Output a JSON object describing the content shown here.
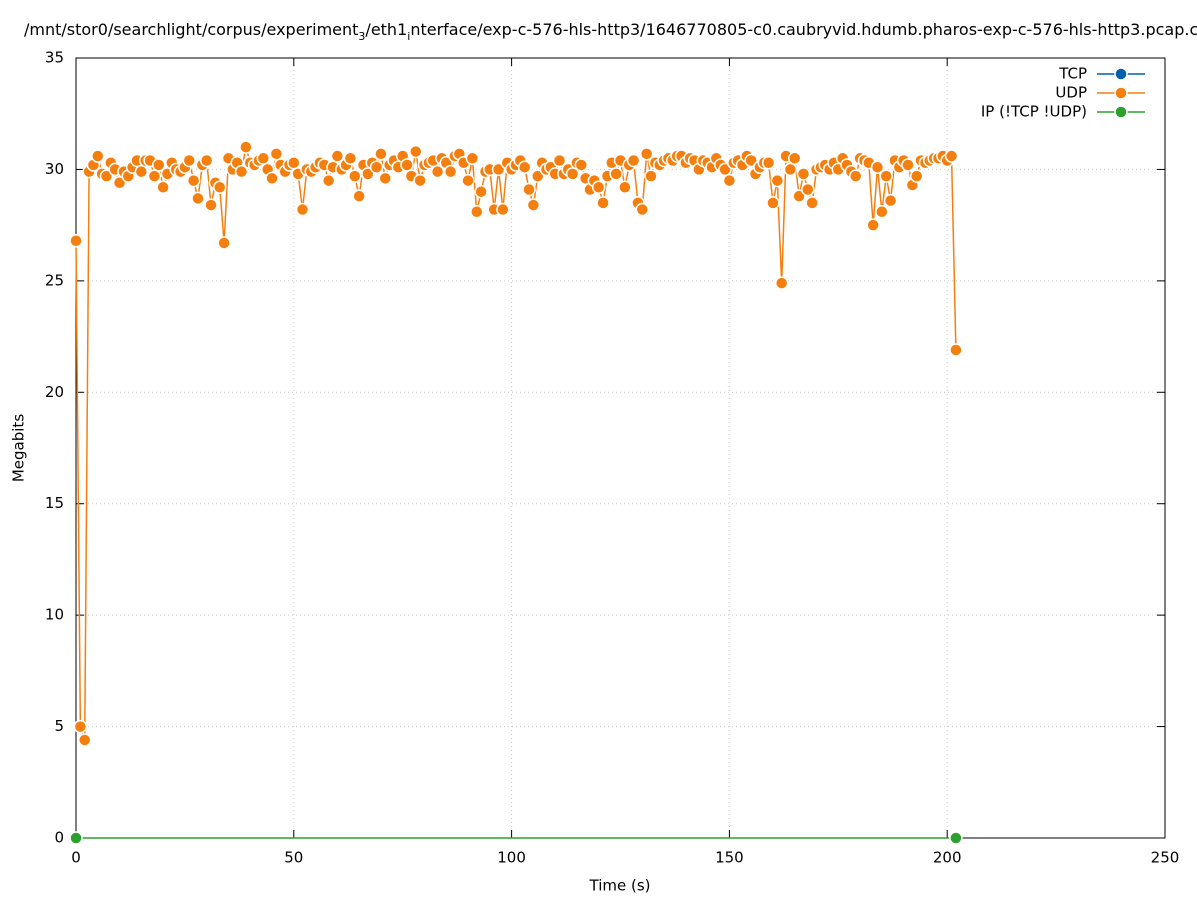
{
  "chart_data": {
    "type": "line",
    "title": [
      "/mnt/stor0/searchlight/corpus/experiment",
      "3",
      "/eth1",
      "i",
      "nterface/exp-c-576-hls-http3/1646770805-c0.caubryvid.hdumb.pharos-exp-c-576-hls-http3.pcap.c"
    ],
    "xlabel": "Time (s)",
    "ylabel": "Megabits",
    "xlim": [
      0,
      250
    ],
    "xticks": [
      0,
      50,
      100,
      150,
      200,
      250
    ],
    "ylim": [
      0,
      35
    ],
    "yticks": [
      0,
      5,
      10,
      15,
      20,
      25,
      30,
      35
    ],
    "grid": true,
    "legend": "top-right",
    "series": [
      {
        "name": "TCP",
        "color": "#0060ad",
        "x": [],
        "values": []
      },
      {
        "name": "UDP",
        "color": "#f57f0e",
        "x": [
          0,
          1,
          2,
          3,
          4,
          5,
          6,
          7,
          8,
          9,
          10,
          11,
          12,
          13,
          14,
          15,
          16,
          17,
          18,
          19,
          20,
          21,
          22,
          23,
          24,
          25,
          26,
          27,
          28,
          29,
          30,
          31,
          32,
          33,
          34,
          35,
          36,
          37,
          38,
          39,
          40,
          41,
          42,
          43,
          44,
          45,
          46,
          47,
          48,
          49,
          50,
          51,
          52,
          53,
          54,
          55,
          56,
          57,
          58,
          59,
          60,
          61,
          62,
          63,
          64,
          65,
          66,
          67,
          68,
          69,
          70,
          71,
          72,
          73,
          74,
          75,
          76,
          77,
          78,
          79,
          80,
          81,
          82,
          83,
          84,
          85,
          86,
          87,
          88,
          89,
          90,
          91,
          92,
          93,
          94,
          95,
          96,
          97,
          98,
          99,
          100,
          101,
          102,
          103,
          104,
          105,
          106,
          107,
          108,
          109,
          110,
          111,
          112,
          113,
          114,
          115,
          116,
          117,
          118,
          119,
          120,
          121,
          122,
          123,
          124,
          125,
          126,
          127,
          128,
          129,
          130,
          131,
          132,
          133,
          134,
          135,
          136,
          137,
          138,
          139,
          140,
          141,
          142,
          143,
          144,
          145,
          146,
          147,
          148,
          149,
          150,
          151,
          152,
          153,
          154,
          155,
          156,
          157,
          158,
          159,
          160,
          161,
          162,
          163,
          164,
          165,
          166,
          167,
          168,
          169,
          170,
          171,
          172,
          173,
          174,
          175,
          176,
          177,
          178,
          179,
          180,
          181,
          182,
          183,
          184,
          185,
          186,
          187,
          188,
          189,
          190,
          191,
          192,
          193,
          194,
          195,
          196,
          197,
          198,
          199,
          200,
          201,
          202
        ],
        "values": [
          26.8,
          5.0,
          4.4,
          29.9,
          30.2,
          30.6,
          29.8,
          29.7,
          30.3,
          30.0,
          29.4,
          29.9,
          29.7,
          30.1,
          30.4,
          29.9,
          30.4,
          30.4,
          29.7,
          30.2,
          29.2,
          29.8,
          30.3,
          30.0,
          29.9,
          30.1,
          30.4,
          29.5,
          28.7,
          30.2,
          30.4,
          28.4,
          29.4,
          29.2,
          26.7,
          30.5,
          30.0,
          30.3,
          29.9,
          31.0,
          30.3,
          30.2,
          30.4,
          30.5,
          30.0,
          29.6,
          30.7,
          30.2,
          29.9,
          30.2,
          30.3,
          29.8,
          28.2,
          30.0,
          29.9,
          30.1,
          30.3,
          30.2,
          29.5,
          30.1,
          30.6,
          30.0,
          30.2,
          30.5,
          29.7,
          28.8,
          30.2,
          29.8,
          30.3,
          30.1,
          30.7,
          29.6,
          30.2,
          30.4,
          30.1,
          30.6,
          30.2,
          29.7,
          30.8,
          29.5,
          30.2,
          30.3,
          30.4,
          29.9,
          30.5,
          30.3,
          29.9,
          30.6,
          30.7,
          30.3,
          29.5,
          30.5,
          28.1,
          29.0,
          29.9,
          30.0,
          28.2,
          30.0,
          28.2,
          30.3,
          30.0,
          30.2,
          30.4,
          30.1,
          29.1,
          28.4,
          29.7,
          30.3,
          30.0,
          30.1,
          29.8,
          30.4,
          29.8,
          30.0,
          29.8,
          30.3,
          30.2,
          29.6,
          29.1,
          29.5,
          29.2,
          28.5,
          29.7,
          30.3,
          29.8,
          30.4,
          29.2,
          30.2,
          30.4,
          28.5,
          28.2,
          30.7,
          29.7,
          30.3,
          30.2,
          30.4,
          30.5,
          30.4,
          30.6,
          30.6,
          30.3,
          30.5,
          30.4,
          30.0,
          30.4,
          30.3,
          30.1,
          30.5,
          30.2,
          30.0,
          29.5,
          30.3,
          30.4,
          30.2,
          30.6,
          30.4,
          29.8,
          30.1,
          30.3,
          30.3,
          28.5,
          29.5,
          24.9,
          30.6,
          30.0,
          30.5,
          28.8,
          29.8,
          29.1,
          28.5,
          30.0,
          30.1,
          30.2,
          30.0,
          30.3,
          30.0,
          30.5,
          30.2,
          29.9,
          29.7,
          30.5,
          30.4,
          30.3,
          27.5,
          30.1,
          28.1,
          29.7,
          28.6,
          30.4,
          30.1,
          30.4,
          30.2,
          29.3,
          29.7,
          30.4,
          30.3,
          30.4,
          30.5,
          30.5,
          30.6,
          30.4,
          30.6,
          21.9
        ]
      },
      {
        "name": "IP (!TCP  !UDP)",
        "color": "#2ca02c",
        "x": [
          0,
          202
        ],
        "values": [
          0,
          0
        ]
      }
    ]
  }
}
